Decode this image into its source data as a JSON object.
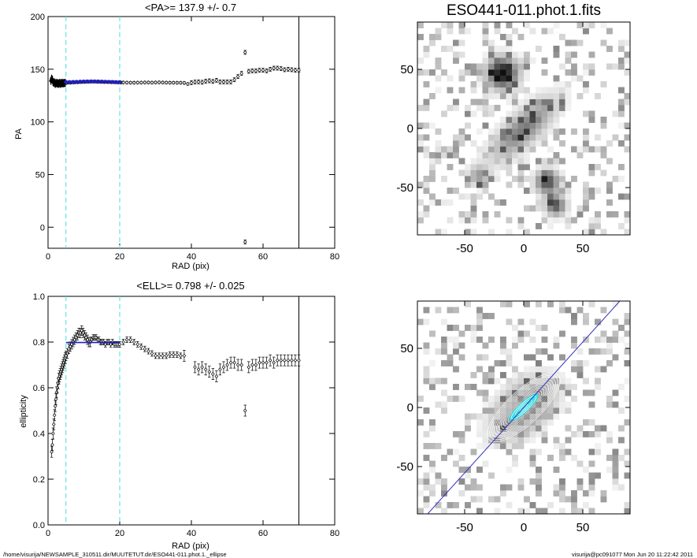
{
  "chart_data": [
    {
      "id": "pa",
      "type": "scatter",
      "title": "<PA>= 137.9 +/-   0.7",
      "xlabel": "RAD (pix)",
      "ylabel": "PA",
      "xlim": [
        0,
        80
      ],
      "ylim": [
        -20,
        200
      ],
      "xticks": [
        0,
        20,
        40,
        60,
        80
      ],
      "yticks": [
        0,
        50,
        100,
        150,
        200
      ],
      "vlines_cyan_dashed": [
        5,
        20
      ],
      "vline_solid": 70,
      "colors": {
        "raw": "#000000",
        "fit": "#2020c0",
        "guide": "#40e0e0"
      },
      "fit_range": [
        5,
        20
      ],
      "dense_points": [
        [
          0.8,
          139
        ],
        [
          1.0,
          141
        ],
        [
          1.2,
          140
        ],
        [
          1.4,
          138
        ],
        [
          1.6,
          137
        ],
        [
          1.8,
          137.5
        ],
        [
          2.0,
          136
        ],
        [
          2.2,
          137
        ],
        [
          2.4,
          136.5
        ],
        [
          2.6,
          137
        ],
        [
          2.8,
          136
        ],
        [
          3.0,
          136.5
        ],
        [
          3.2,
          137
        ],
        [
          3.4,
          136
        ],
        [
          3.6,
          137
        ],
        [
          3.8,
          136.5
        ],
        [
          4.0,
          137
        ],
        [
          4.2,
          136.5
        ],
        [
          4.4,
          137
        ],
        [
          4.6,
          136.8
        ],
        [
          4.8,
          137
        ]
      ],
      "points": [
        [
          5.2,
          137
        ],
        [
          5.7,
          137.5
        ],
        [
          6.2,
          137.2
        ],
        [
          6.7,
          137.6
        ],
        [
          7.2,
          137.4
        ],
        [
          7.7,
          137.8
        ],
        [
          8.2,
          137.6
        ],
        [
          8.7,
          137.9
        ],
        [
          9.2,
          137.8
        ],
        [
          9.7,
          138.1
        ],
        [
          10.2,
          138
        ],
        [
          10.7,
          138.2
        ],
        [
          11.2,
          138.1
        ],
        [
          11.7,
          138.2
        ],
        [
          12.2,
          138.3
        ],
        [
          12.7,
          138.2
        ],
        [
          13.2,
          138.3
        ],
        [
          13.7,
          138.1
        ],
        [
          14.2,
          138.2
        ],
        [
          14.7,
          138.0
        ],
        [
          15.2,
          138.1
        ],
        [
          15.7,
          137.9
        ],
        [
          16.2,
          138.0
        ],
        [
          16.7,
          137.8
        ],
        [
          17.2,
          137.9
        ],
        [
          17.7,
          137.7
        ],
        [
          18.2,
          137.8
        ],
        [
          18.7,
          137.6
        ],
        [
          19.2,
          137.6
        ],
        [
          19.7,
          137.5
        ],
        [
          20.3,
          137.4
        ],
        [
          21,
          137.4
        ],
        [
          22,
          137.3
        ],
        [
          23,
          137.2
        ],
        [
          24,
          137.2
        ],
        [
          25,
          137.3
        ],
        [
          26,
          137.3
        ],
        [
          27,
          137.4
        ],
        [
          28,
          137.4
        ],
        [
          29,
          137.3
        ],
        [
          30,
          137.4
        ],
        [
          31,
          137.5
        ],
        [
          32,
          137.4
        ],
        [
          33,
          137.3
        ],
        [
          34,
          137.2
        ],
        [
          35,
          137.2
        ],
        [
          36,
          137.1
        ],
        [
          37,
          137.1
        ],
        [
          38,
          137.0
        ],
        [
          39,
          136.0
        ],
        [
          40,
          137.2
        ],
        [
          41,
          137.8
        ],
        [
          42,
          138.0
        ],
        [
          43,
          137.6
        ],
        [
          44,
          138.6
        ],
        [
          45,
          139.0
        ],
        [
          46,
          138.4
        ],
        [
          47,
          139.5
        ],
        [
          48,
          138.0
        ],
        [
          49,
          138.0
        ],
        [
          50,
          138.0
        ],
        [
          51,
          138.0
        ],
        [
          52,
          140.0
        ],
        [
          53,
          143.0
        ],
        [
          54,
          146.0
        ],
        [
          55,
          166.0
        ],
        [
          55,
          -14.0
        ],
        [
          56,
          148.0
        ],
        [
          57,
          148.5
        ],
        [
          58,
          148.5
        ],
        [
          59,
          149.0
        ],
        [
          60,
          149.0
        ],
        [
          61,
          148.5
        ],
        [
          62,
          150.0
        ],
        [
          63,
          151.0
        ],
        [
          64,
          151.0
        ],
        [
          65,
          150.5
        ],
        [
          66,
          149.5
        ],
        [
          67,
          150.0
        ],
        [
          68,
          149.5
        ],
        [
          69,
          149.0
        ],
        [
          70,
          149.0
        ]
      ],
      "fit_points": [
        [
          5,
          137.9
        ],
        [
          6,
          137.9
        ],
        [
          7,
          138.0
        ],
        [
          8,
          138.1
        ],
        [
          9,
          138.2
        ],
        [
          10,
          138.3
        ],
        [
          11,
          138.4
        ],
        [
          12,
          138.4
        ],
        [
          13,
          138.4
        ],
        [
          14,
          138.3
        ],
        [
          15,
          138.2
        ],
        [
          16,
          138.1
        ],
        [
          17,
          138.0
        ],
        [
          18,
          137.9
        ],
        [
          19,
          137.8
        ],
        [
          20,
          137.7
        ]
      ]
    },
    {
      "id": "ell",
      "type": "scatter",
      "title": "<ELL>= 0.798 +/-  0.025",
      "xlabel": "RAD (pix)",
      "ylabel": "ellipticity",
      "xlim": [
        0,
        80
      ],
      "ylim": [
        0,
        1
      ],
      "xticks": [
        0,
        20,
        40,
        60,
        80
      ],
      "yticks": [
        0.0,
        0.2,
        0.4,
        0.6,
        0.8,
        1.0
      ],
      "ytick_labels": [
        "0.0",
        "0.2",
        "0.4",
        "0.6",
        "0.8",
        "1.0"
      ],
      "vlines_cyan_dashed": [
        5,
        20
      ],
      "vline_solid": 70,
      "colors": {
        "raw": "#000000",
        "fit": "#2020c0",
        "guide": "#40e0e0"
      },
      "fit_line": {
        "x": [
          5,
          20
        ],
        "y": 0.798
      },
      "points": [
        [
          1.0,
          0.32
        ],
        [
          1.2,
          0.35
        ],
        [
          1.4,
          0.4
        ],
        [
          1.6,
          0.44
        ],
        [
          1.8,
          0.48
        ],
        [
          2.0,
          0.52
        ],
        [
          2.2,
          0.55
        ],
        [
          2.4,
          0.58
        ],
        [
          2.6,
          0.6
        ],
        [
          2.8,
          0.62
        ],
        [
          3.0,
          0.64
        ],
        [
          3.2,
          0.65
        ],
        [
          3.4,
          0.66
        ],
        [
          3.6,
          0.67
        ],
        [
          3.8,
          0.68
        ],
        [
          4.0,
          0.69
        ],
        [
          4.2,
          0.7
        ],
        [
          4.4,
          0.71
        ],
        [
          4.6,
          0.72
        ],
        [
          4.8,
          0.73
        ],
        [
          5.0,
          0.74
        ],
        [
          5.4,
          0.75
        ],
        [
          5.8,
          0.77
        ],
        [
          6.2,
          0.78
        ],
        [
          6.6,
          0.79
        ],
        [
          7.0,
          0.8
        ],
        [
          7.4,
          0.81
        ],
        [
          7.8,
          0.82
        ],
        [
          8.2,
          0.83
        ],
        [
          8.6,
          0.84
        ],
        [
          9.0,
          0.84
        ],
        [
          9.4,
          0.85
        ],
        [
          9.8,
          0.84
        ],
        [
          10.2,
          0.83
        ],
        [
          10.6,
          0.82
        ],
        [
          11.0,
          0.81
        ],
        [
          11.4,
          0.8
        ],
        [
          11.8,
          0.8
        ],
        [
          12.2,
          0.81
        ],
        [
          12.6,
          0.82
        ],
        [
          13.0,
          0.82
        ],
        [
          13.4,
          0.82
        ],
        [
          13.8,
          0.81
        ],
        [
          14.2,
          0.81
        ],
        [
          14.6,
          0.8
        ],
        [
          15.0,
          0.8
        ],
        [
          15.5,
          0.8
        ],
        [
          16.0,
          0.79
        ],
        [
          16.5,
          0.8
        ],
        [
          17.0,
          0.8
        ],
        [
          17.5,
          0.79
        ],
        [
          18.0,
          0.8
        ],
        [
          18.5,
          0.79
        ],
        [
          19.0,
          0.79
        ],
        [
          19.5,
          0.79
        ],
        [
          20.0,
          0.79
        ],
        [
          21,
          0.8
        ],
        [
          22,
          0.81
        ],
        [
          23,
          0.81
        ],
        [
          24,
          0.8
        ],
        [
          25,
          0.79
        ],
        [
          26,
          0.78
        ],
        [
          27,
          0.77
        ],
        [
          28,
          0.76
        ],
        [
          29,
          0.75
        ],
        [
          30,
          0.74
        ],
        [
          31,
          0.74
        ],
        [
          32,
          0.74
        ],
        [
          33,
          0.74
        ],
        [
          34,
          0.745
        ],
        [
          35,
          0.745
        ],
        [
          36,
          0.745
        ],
        [
          37,
          0.74
        ],
        [
          38,
          0.74
        ],
        [
          41,
          0.69
        ],
        [
          42,
          0.68
        ],
        [
          43,
          0.69
        ],
        [
          44,
          0.68
        ],
        [
          45,
          0.67
        ],
        [
          46,
          0.66
        ],
        [
          47,
          0.65
        ],
        [
          48,
          0.68
        ],
        [
          49,
          0.69
        ],
        [
          50,
          0.7
        ],
        [
          51,
          0.71
        ],
        [
          52,
          0.71
        ],
        [
          53,
          0.7
        ],
        [
          54,
          0.7
        ],
        [
          55,
          0.5
        ],
        [
          56,
          0.69
        ],
        [
          57,
          0.7
        ],
        [
          58,
          0.7
        ],
        [
          59,
          0.71
        ],
        [
          60,
          0.71
        ],
        [
          61,
          0.71
        ],
        [
          62,
          0.72
        ],
        [
          63,
          0.71
        ],
        [
          64,
          0.72
        ],
        [
          65,
          0.72
        ],
        [
          66,
          0.72
        ],
        [
          67,
          0.72
        ],
        [
          68,
          0.72
        ],
        [
          69,
          0.72
        ],
        [
          70,
          0.72
        ]
      ]
    },
    {
      "id": "image_top",
      "type": "heatmap",
      "title": "ESO441-011.phot.1.fits",
      "xlim": [
        -90,
        90
      ],
      "ylim": [
        -90,
        90
      ],
      "xticks": [
        -50,
        0,
        50
      ],
      "yticks": [
        -50,
        0,
        50
      ],
      "cell_size": 5,
      "sources": [
        {
          "x": -18,
          "y": 47,
          "peak": 1.0,
          "sigma": 9
        },
        {
          "x": 20,
          "y": -45,
          "peak": 0.75,
          "sigma": 7
        },
        {
          "x": 27,
          "y": -65,
          "peak": 0.7,
          "sigma": 6
        },
        {
          "x": -38,
          "y": -40,
          "peak": 0.4,
          "sigma": 6
        }
      ],
      "galaxy": {
        "x": 0,
        "y": 0,
        "peak": 0.55,
        "major": 48,
        "minor": 9,
        "angle_deg": 43
      }
    },
    {
      "id": "image_bottom",
      "type": "heatmap",
      "xlim": [
        -90,
        90
      ],
      "ylim": [
        -90,
        90
      ],
      "xticks": [
        -50,
        0,
        50
      ],
      "yticks": [
        -50,
        0,
        50
      ],
      "cell_size": 5,
      "axis_line": {
        "angle_deg": 47.9,
        "color": "#3030c0"
      },
      "contours": {
        "count": 16,
        "max_major": 40,
        "ellipticity": 0.78,
        "angle_deg": 43,
        "color": "#ffffff"
      },
      "core": {
        "major": 16,
        "minor": 4,
        "angle_deg": 43,
        "color": "#40e0e0"
      }
    }
  ],
  "footer": {
    "path": "/home/visurija/NEWSAMPLE_310511.dir/MUUTETUT.dir/ESO441-011.phot.1._ellipse",
    "user_stamp": "visurija@pc091077  Mon Jun 20 11:22:42 2011"
  }
}
